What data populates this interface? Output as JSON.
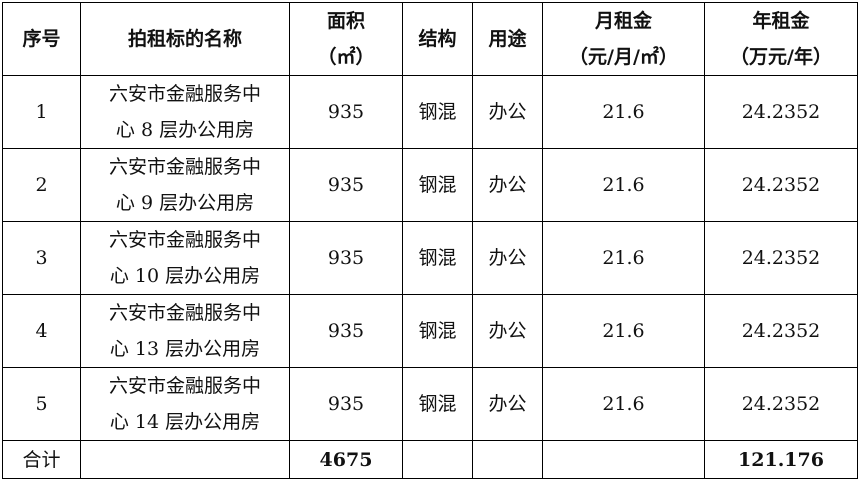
{
  "headers": {
    "index": "序号",
    "name": "拍租标的名称",
    "area": [
      "面积",
      "（㎡）"
    ],
    "structure": "结构",
    "use": "用途",
    "monthly": [
      "月租金",
      "（元/月/㎡）"
    ],
    "annual": [
      "年租金",
      "（万元/年）"
    ]
  },
  "rows": [
    {
      "index": "1",
      "name": [
        "六安市金融服务中",
        "心 8 层办公用房"
      ],
      "area": "935",
      "structure": "钢混",
      "use": "办公",
      "monthly": "21.6",
      "annual": "24.2352"
    },
    {
      "index": "2",
      "name": [
        "六安市金融服务中",
        "心 9 层办公用房"
      ],
      "area": "935",
      "structure": "钢混",
      "use": "办公",
      "monthly": "21.6",
      "annual": "24.2352"
    },
    {
      "index": "3",
      "name": [
        "六安市金融服务中",
        "心 10 层办公用房"
      ],
      "area": "935",
      "structure": "钢混",
      "use": "办公",
      "monthly": "21.6",
      "annual": "24.2352"
    },
    {
      "index": "4",
      "name": [
        "六安市金融服务中",
        "心 13 层办公用房"
      ],
      "area": "935",
      "structure": "钢混",
      "use": "办公",
      "monthly": "21.6",
      "annual": "24.2352"
    },
    {
      "index": "5",
      "name": [
        "六安市金融服务中",
        "心 14 层办公用房"
      ],
      "area": "935",
      "structure": "钢混",
      "use": "办公",
      "monthly": "21.6",
      "annual": "24.2352"
    }
  ],
  "total": {
    "label": "合计",
    "area": "4675",
    "annual": "121.176"
  }
}
